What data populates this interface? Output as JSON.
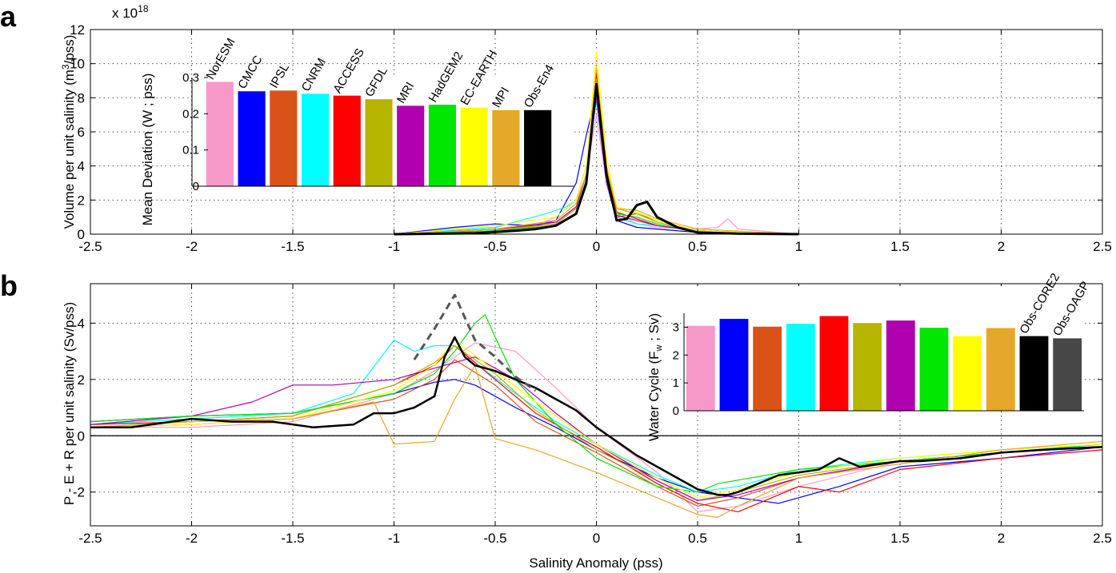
{
  "panels": {
    "a": "a",
    "b": "b"
  },
  "chart_data": [
    {
      "id": "a",
      "type": "line",
      "title": "",
      "xlabel": "",
      "ylabel": "Volume per unit salinity (m³/pss)",
      "ylabel_main": "Volume per unit salinity (m",
      "ylabel_sup": "3",
      "ylabel_tail": "/pss)",
      "multiplier_base": "x 10",
      "multiplier_exp": "18",
      "xlim": [
        -2.5,
        2.5
      ],
      "ylim": [
        0,
        12
      ],
      "xticks": [
        -2.5,
        -2,
        -1.5,
        -1,
        -0.5,
        0,
        0.5,
        1,
        1.5,
        2,
        2.5
      ],
      "yticks": [
        0,
        2,
        4,
        6,
        8,
        10,
        12
      ],
      "grid": true,
      "series": [
        {
          "name": "NorESM",
          "color": "#ff99cc",
          "x": [
            -1,
            -0.6,
            -0.3,
            -0.2,
            -0.1,
            -0.05,
            0,
            0.05,
            0.1,
            0.2,
            0.3,
            0.5,
            0.6,
            0.65,
            0.7,
            1
          ],
          "y": [
            0,
            0.1,
            0.5,
            1,
            2,
            3.5,
            7,
            3,
            1.2,
            0.6,
            0.4,
            0.3,
            0.4,
            0.9,
            0.3,
            0
          ]
        },
        {
          "name": "CMCC",
          "color": "#0000ff",
          "x": [
            -1,
            -0.7,
            -0.5,
            -0.3,
            -0.2,
            -0.1,
            -0.05,
            0,
            0.05,
            0.1,
            0.2,
            0.3,
            0.5,
            1
          ],
          "y": [
            0,
            0.4,
            0.6,
            0.5,
            0.8,
            3,
            5.8,
            8.3,
            3,
            0.8,
            0.4,
            0.3,
            0.1,
            0
          ]
        },
        {
          "name": "IPSL",
          "color": "#d95319",
          "x": [
            -1,
            -0.5,
            -0.2,
            -0.1,
            -0.05,
            0,
            0.05,
            0.1,
            0.2,
            0.3,
            0.5,
            1
          ],
          "y": [
            0,
            0.3,
            0.6,
            1.5,
            3,
            8.5,
            3.5,
            1,
            1.2,
            0.8,
            0.2,
            0
          ]
        },
        {
          "name": "CNRM",
          "color": "#00ffff",
          "x": [
            -1,
            -0.5,
            -0.25,
            -0.15,
            -0.1,
            -0.05,
            0,
            0.05,
            0.1,
            0.2,
            0.3,
            0.5,
            1
          ],
          "y": [
            0,
            0.4,
            1.2,
            1.6,
            2,
            4,
            7.8,
            3,
            1,
            0.6,
            0.5,
            0.2,
            0
          ]
        },
        {
          "name": "ACCESS",
          "color": "#ff0000",
          "x": [
            -1,
            -0.5,
            -0.2,
            -0.1,
            -0.05,
            0,
            0.05,
            0.1,
            0.2,
            0.3,
            0.5,
            1
          ],
          "y": [
            0,
            0.2,
            0.5,
            1.2,
            3,
            9.5,
            3.6,
            1.3,
            0.9,
            0.5,
            0.2,
            0
          ]
        },
        {
          "name": "GFDL",
          "color": "#b5b500",
          "x": [
            -1,
            -0.5,
            -0.2,
            -0.1,
            -0.05,
            0,
            0.05,
            0.1,
            0.2,
            0.3,
            0.5,
            1
          ],
          "y": [
            0,
            0.2,
            0.6,
            1.5,
            3.2,
            9,
            3.8,
            1.5,
            1.2,
            0.7,
            0.2,
            0
          ]
        },
        {
          "name": "MRI",
          "color": "#b000b0",
          "x": [
            -1,
            -0.5,
            -0.2,
            -0.1,
            -0.05,
            0,
            0.05,
            0.1,
            0.2,
            0.3,
            0.5,
            1
          ],
          "y": [
            0,
            0.3,
            0.7,
            1.6,
            3.5,
            8,
            3,
            1.1,
            0.8,
            0.5,
            0.2,
            0
          ]
        },
        {
          "name": "HadGEM2",
          "color": "#00e600",
          "x": [
            -1,
            -0.5,
            -0.2,
            -0.1,
            -0.05,
            0,
            0.05,
            0.1,
            0.2,
            0.3,
            0.5,
            1
          ],
          "y": [
            0,
            0.2,
            0.5,
            1.2,
            2.8,
            8.8,
            3.2,
            1.2,
            1,
            0.6,
            0.2,
            0
          ]
        },
        {
          "name": "EC-EARTH",
          "color": "#ffff00",
          "x": [
            -1,
            -0.5,
            -0.2,
            -0.1,
            -0.05,
            0,
            0.05,
            0.1,
            0.2,
            0.3,
            0.5,
            1
          ],
          "y": [
            0,
            0.5,
            1,
            2,
            4,
            10.7,
            4.5,
            1.6,
            1.3,
            0.8,
            0.2,
            0
          ]
        },
        {
          "name": "MPI",
          "color": "#e6a82a",
          "x": [
            -1,
            -0.5,
            -0.2,
            -0.1,
            -0.05,
            0,
            0.05,
            0.1,
            0.2,
            0.3,
            0.5,
            1
          ],
          "y": [
            0,
            0.3,
            0.8,
            1.8,
            3.5,
            9.8,
            4,
            1.5,
            1.4,
            0.9,
            0.3,
            0
          ]
        },
        {
          "name": "Obs-En4",
          "color": "#000000",
          "width": 3,
          "x": [
            -1,
            -0.6,
            -0.4,
            -0.3,
            -0.2,
            -0.1,
            -0.05,
            0,
            0.05,
            0.1,
            0.15,
            0.2,
            0.25,
            0.3,
            0.35,
            0.4,
            0.5,
            0.7,
            1
          ],
          "y": [
            0,
            0.05,
            0.2,
            0.3,
            0.5,
            1.2,
            3,
            8.8,
            3.5,
            0.8,
            0.9,
            1.7,
            1.9,
            1,
            0.7,
            0.4,
            0.1,
            0.03,
            0
          ]
        }
      ],
      "inset": {
        "type": "bar",
        "ylabel": "Mean Deviation (W ; pss)",
        "ylim": [
          0,
          0.3
        ],
        "yticks": [
          "0",
          "0.1",
          "0.2",
          "0.3"
        ],
        "categories": [
          "NorESM",
          "CMCC",
          "IPSL",
          "CNRM",
          "ACCESS",
          "GFDL",
          "MRI",
          "HadGEM2",
          "EC-EARTH",
          "MPI",
          "Obs-En4"
        ],
        "values": [
          0.288,
          0.262,
          0.264,
          0.255,
          0.25,
          0.24,
          0.222,
          0.225,
          0.217,
          0.21,
          0.21
        ],
        "colors": [
          "#f799c8",
          "#0000ff",
          "#d95319",
          "#00ffff",
          "#ff0000",
          "#b5b500",
          "#b000b0",
          "#00e600",
          "#ffff00",
          "#e6a82a",
          "#000000"
        ]
      }
    },
    {
      "id": "b",
      "type": "line",
      "title": "",
      "xlabel": "Salinity Anomaly (pss)",
      "ylabel": "P - E + R per unit salinity (Sv/pss)",
      "xlim": [
        -2.5,
        2.5
      ],
      "ylim": [
        -3.2,
        5.4
      ],
      "xticks": [
        -2.5,
        -2,
        -1.5,
        -1,
        -0.5,
        0,
        0.5,
        1,
        1.5,
        2,
        2.5
      ],
      "yticks": [
        -2,
        0,
        2,
        4
      ],
      "grid": true,
      "series": [
        {
          "name": "NorESM",
          "color": "#ff99cc",
          "x": [
            -2.5,
            -2,
            -1.5,
            -1,
            -0.8,
            -0.6,
            -0.4,
            -0.2,
            0,
            0.3,
            0.5,
            0.7,
            1,
            1.5,
            2,
            2.5
          ],
          "y": [
            0.3,
            0.3,
            0.5,
            1.5,
            2.3,
            3.3,
            3,
            1.7,
            0.3,
            -1.3,
            -2.7,
            -2.5,
            -1.8,
            -0.9,
            -0.6,
            -0.4
          ]
        },
        {
          "name": "CMCC",
          "color": "#0000ff",
          "x": [
            -2.5,
            -2,
            -1.5,
            -1,
            -0.8,
            -0.7,
            -0.6,
            -0.4,
            -0.2,
            0,
            0.3,
            0.5,
            0.7,
            0.9,
            1.2,
            1.5,
            2,
            2.5
          ],
          "y": [
            0.5,
            0.7,
            0.8,
            1.5,
            1.9,
            2,
            1.8,
            1,
            0.3,
            -0.5,
            -1.5,
            -2,
            -2.2,
            -2.4,
            -1.8,
            -1.1,
            -0.8,
            -0.4
          ]
        },
        {
          "name": "IPSL",
          "color": "#d95319",
          "x": [
            -2.5,
            -2,
            -1.5,
            -1,
            -0.8,
            -0.7,
            -0.5,
            -0.3,
            0,
            0.3,
            0.5,
            0.7,
            1,
            1.5,
            2,
            2.5
          ],
          "y": [
            0.3,
            0.4,
            0.6,
            1.3,
            2,
            2.7,
            1.8,
            0.5,
            -0.6,
            -1.8,
            -2.5,
            -2.2,
            -1.5,
            -0.9,
            -0.6,
            -0.4
          ]
        },
        {
          "name": "CNRM",
          "color": "#00ffff",
          "x": [
            -2.5,
            -2,
            -1.5,
            -1.2,
            -1,
            -0.9,
            -0.8,
            -0.7,
            -0.6,
            -0.4,
            -0.2,
            0,
            0.3,
            0.5,
            0.7,
            1,
            1.5,
            2,
            2.5
          ],
          "y": [
            0.4,
            0.6,
            0.8,
            1.5,
            3.4,
            3,
            3.2,
            3.2,
            2.6,
            1.5,
            0.5,
            -0.3,
            -1.4,
            -2,
            -1.8,
            -1.2,
            -0.8,
            -0.5,
            -0.3
          ]
        },
        {
          "name": "ACCESS",
          "color": "#ff0000",
          "x": [
            -2.5,
            -2,
            -1.5,
            -1,
            -0.8,
            -0.7,
            -0.5,
            -0.3,
            0,
            0.3,
            0.5,
            0.7,
            1,
            1.2,
            1.5,
            2,
            2.5
          ],
          "y": [
            0.4,
            0.5,
            0.7,
            1.8,
            2.5,
            3.2,
            2,
            0.8,
            -0.4,
            -1.7,
            -2.4,
            -2.7,
            -1.8,
            -2,
            -1.2,
            -0.8,
            -0.5
          ]
        },
        {
          "name": "GFDL",
          "color": "#b5b500",
          "x": [
            -2.5,
            -2,
            -1.5,
            -1,
            -0.8,
            -0.7,
            -0.5,
            -0.3,
            0,
            0.3,
            0.5,
            0.7,
            1,
            1.5,
            2,
            2.5
          ],
          "y": [
            0.3,
            0.5,
            0.7,
            1.8,
            2.6,
            3.2,
            2.2,
            0.9,
            -0.5,
            -1.6,
            -2.3,
            -2,
            -1.4,
            -0.9,
            -0.6,
            -0.3
          ]
        },
        {
          "name": "MRI",
          "color": "#b000b0",
          "x": [
            -2.5,
            -2,
            -1.7,
            -1.5,
            -1.3,
            -1,
            -0.8,
            -0.6,
            -0.4,
            -0.2,
            0,
            0.3,
            0.5,
            0.7,
            1,
            1.5,
            2,
            2.5
          ],
          "y": [
            0.4,
            0.7,
            1.2,
            1.8,
            1.8,
            2,
            2.4,
            2.8,
            2,
            0.8,
            -0.3,
            -1.6,
            -2.3,
            -2.1,
            -1.5,
            -0.9,
            -0.6,
            -0.4
          ]
        },
        {
          "name": "HadGEM2",
          "color": "#00e600",
          "x": [
            -2.5,
            -2,
            -1.5,
            -1,
            -0.8,
            -0.7,
            -0.6,
            -0.55,
            -0.5,
            -0.4,
            -0.2,
            0,
            0.3,
            0.5,
            0.6,
            1,
            1.5,
            2,
            2.5
          ],
          "y": [
            0.5,
            0.7,
            0.8,
            1.5,
            2.2,
            3,
            4,
            4.3,
            3.5,
            2,
            0.4,
            -0.8,
            -1.8,
            -2,
            -1.7,
            -1.2,
            -0.9,
            -0.6,
            -0.3
          ]
        },
        {
          "name": "EC-EARTH",
          "color": "#ffff00",
          "x": [
            -2.5,
            -2,
            -1.5,
            -1,
            -0.8,
            -0.7,
            -0.5,
            -0.3,
            0,
            0.3,
            0.5,
            0.7,
            1,
            1.5,
            2,
            2.5
          ],
          "y": [
            0.3,
            0.4,
            0.6,
            1.6,
            2.5,
            3.4,
            2.3,
            1.2,
            -0.3,
            -1.5,
            -2.2,
            -1.9,
            -1.3,
            -0.8,
            -0.5,
            -0.3
          ]
        },
        {
          "name": "MPI",
          "color": "#e6a82a",
          "x": [
            -2.5,
            -2,
            -1.5,
            -1.1,
            -1,
            -0.8,
            -0.7,
            -0.6,
            -0.5,
            -0.3,
            0,
            0.3,
            0.5,
            0.6,
            0.7,
            1,
            1.5,
            2,
            2.5
          ],
          "y": [
            0.3,
            0.5,
            0.6,
            1.2,
            -0.3,
            -0.2,
            1.3,
            2.5,
            -0.1,
            -0.5,
            -1.3,
            -2.2,
            -2.8,
            -2.9,
            -2.5,
            -1.5,
            -1,
            -0.5,
            -0.2
          ]
        },
        {
          "name": "Obs-En4",
          "color": "#000000",
          "width": 2.5,
          "x": [
            -2.5,
            -2.3,
            -2,
            -1.8,
            -1.6,
            -1.4,
            -1.2,
            -1.1,
            -1,
            -0.9,
            -0.8,
            -0.75,
            -0.7,
            -0.65,
            -0.6,
            -0.5,
            -0.4,
            -0.3,
            -0.2,
            -0.1,
            0,
            0.1,
            0.2,
            0.3,
            0.4,
            0.5,
            0.6,
            0.65,
            0.7,
            0.8,
            0.9,
            1,
            1.1,
            1.2,
            1.3,
            1.4,
            1.5,
            1.6,
            1.8,
            2,
            2.2,
            2.5
          ],
          "y": [
            0.3,
            0.3,
            0.6,
            0.5,
            0.5,
            0.3,
            0.4,
            0.8,
            0.8,
            1,
            1.4,
            2.8,
            3.5,
            2.8,
            2.5,
            2.3,
            2,
            1.7,
            1.3,
            0.9,
            0.3,
            -0.2,
            -0.7,
            -1.1,
            -1.5,
            -1.9,
            -2.1,
            -2.1,
            -2,
            -1.7,
            -1.4,
            -1.3,
            -1.2,
            -0.8,
            -1.1,
            -1,
            -0.9,
            -0.9,
            -0.8,
            -0.6,
            -0.5,
            -0.4
          ]
        },
        {
          "name": "Obs-CORE2",
          "color": "#555555",
          "width": 3,
          "dash": "9 6",
          "x": [
            -0.9,
            -0.8,
            -0.7,
            -0.6,
            -0.5,
            -0.4,
            -0.3
          ],
          "y": [
            2.7,
            3.8,
            5,
            3.4,
            2.8,
            2.1,
            1.6
          ]
        }
      ],
      "inset": {
        "type": "bar",
        "ylabel": "Water Cycle (F_w ; Sv)",
        "ylabel_main": "Water Cycle (F",
        "ylabel_sub": "w",
        "ylabel_tail": " ; Sv)",
        "ylim": [
          0,
          3.5
        ],
        "yticks": [
          "0",
          "1",
          "2",
          "3"
        ],
        "categories": [
          "NorESM",
          "CMCC",
          "IPSL",
          "CNRM",
          "ACCESS",
          "GFDL",
          "MRI",
          "HadGEM2",
          "EC-EARTH",
          "MPI",
          "Obs-CORE2",
          "Obs-OAGP"
        ],
        "shown_labels": [
          "Obs-CORE2",
          "Obs-OAGP"
        ],
        "values": [
          3.05,
          3.3,
          3.02,
          3.12,
          3.4,
          3.15,
          3.24,
          2.98,
          2.68,
          2.97,
          2.68,
          2.6
        ],
        "colors": [
          "#f799c8",
          "#0000ff",
          "#d95319",
          "#00ffff",
          "#ff0000",
          "#b5b500",
          "#b000b0",
          "#00e600",
          "#ffff00",
          "#e6a82a",
          "#000000",
          "#474747"
        ]
      }
    }
  ]
}
